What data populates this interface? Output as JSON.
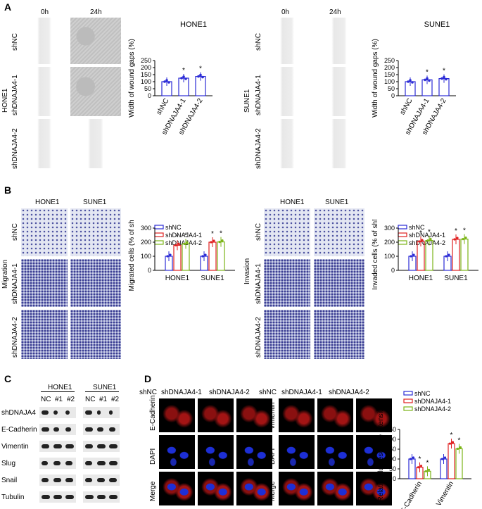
{
  "panels": {
    "A": "A",
    "B": "B",
    "C": "C",
    "D": "D"
  },
  "panelA": {
    "time_labels": [
      "0h",
      "24h"
    ],
    "left_cell": "HONE1",
    "right_cell": "SUNE1",
    "rows": [
      "shNC",
      "shDNAJA4-1",
      "shDNAJA4-2"
    ],
    "chart_title_left": "HONE1",
    "chart_title_right": "SUNE1",
    "ylabel": "Width of wound gaps (%)",
    "asterisk": "*"
  },
  "panelB": {
    "col_labels": [
      "HONE1",
      "SUNE1"
    ],
    "rows": [
      "shNC",
      "shDNAJA4-1",
      "shDNAJA4-2"
    ],
    "left_side": "Migration",
    "right_side": "Invasion",
    "legend": [
      "shNC",
      "shDNAJA4-1",
      "shDNAJA4-2"
    ],
    "ylabel_left": "Migrated cells (% of shNC)",
    "ylabel_right": "Invaded cells (% of shNC)"
  },
  "panelC": {
    "cells": [
      "HONE1",
      "SUNE1"
    ],
    "lanes": [
      "NC",
      "#1",
      "#2",
      "NC",
      "#1",
      "#2"
    ],
    "proteins": [
      "shDNAJA4",
      "E-Cadherin",
      "Vimentin",
      "Slug",
      "Snail",
      "Tubulin"
    ]
  },
  "panelD": {
    "cols": [
      "shNC",
      "shDNAJA4-1",
      "shDNAJA4-2"
    ],
    "rows_left": [
      "E-Cadherin",
      "DAPI",
      "Merge"
    ],
    "rows_right": [
      "Vimentin",
      "DAPI",
      "Merge"
    ],
    "legend": [
      "shNC",
      "shDNAJA4-1",
      "shDNAJA4-2"
    ],
    "ylabel": "Relative fluorescence intensity",
    "categories": [
      "E-Cadherin",
      "Vimentin"
    ]
  },
  "colors": {
    "shNC": "#2b2bd6",
    "shDNAJA4-1": "#e02020",
    "shDNAJA4-2": "#7cb518"
  },
  "chart_data": [
    {
      "type": "bar",
      "title": "HONE1",
      "ylabel": "Width of wound gaps (%)",
      "categories": [
        "shNC",
        "shDNAJA4-1",
        "shDNAJA4-2"
      ],
      "values": [
        100,
        125,
        137
      ],
      "ylim": [
        0,
        250
      ],
      "yticks": [
        0,
        50,
        100,
        150,
        200,
        250
      ]
    },
    {
      "type": "bar",
      "title": "SUNE1",
      "ylabel": "Width of wound gaps (%)",
      "categories": [
        "shNC",
        "shDNAJA4-1",
        "shDNAJA4-2"
      ],
      "values": [
        100,
        113,
        122
      ],
      "ylim": [
        0,
        250
      ],
      "yticks": [
        0,
        50,
        100,
        150,
        200,
        250
      ]
    },
    {
      "type": "bar",
      "ylabel": "Migrated cells (% of shNC)",
      "categories": [
        "HONE1",
        "SUNE1"
      ],
      "series": [
        {
          "name": "shNC",
          "values": [
            100,
            100
          ]
        },
        {
          "name": "shDNAJA4-1",
          "values": [
            178,
            200
          ]
        },
        {
          "name": "shDNAJA4-2",
          "values": [
            188,
            202
          ]
        }
      ],
      "ylim": [
        0,
        300
      ],
      "yticks": [
        0,
        100,
        200,
        300
      ]
    },
    {
      "type": "bar",
      "ylabel": "Invaded cells (% of shNC)",
      "categories": [
        "HONE1",
        "SUNE1"
      ],
      "series": [
        {
          "name": "shNC",
          "values": [
            100,
            100
          ]
        },
        {
          "name": "shDNAJA4-1",
          "values": [
            205,
            220
          ]
        },
        {
          "name": "shDNAJA4-2",
          "values": [
            212,
            222
          ]
        }
      ],
      "ylim": [
        0,
        300
      ],
      "yticks": [
        0,
        100,
        200,
        300
      ]
    },
    {
      "type": "bar",
      "ylabel": "Relative fluorescence intensity",
      "categories": [
        "E-Cadherin",
        "Vimentin"
      ],
      "series": [
        {
          "name": "shNC",
          "values": [
            100,
            100
          ]
        },
        {
          "name": "shDNAJA4-1",
          "values": [
            58,
            178
          ]
        },
        {
          "name": "shDNAJA4-2",
          "values": [
            38,
            152
          ]
        }
      ],
      "ylim": [
        0,
        250
      ],
      "yticks": [
        0,
        50,
        100,
        150,
        200,
        250
      ]
    }
  ]
}
